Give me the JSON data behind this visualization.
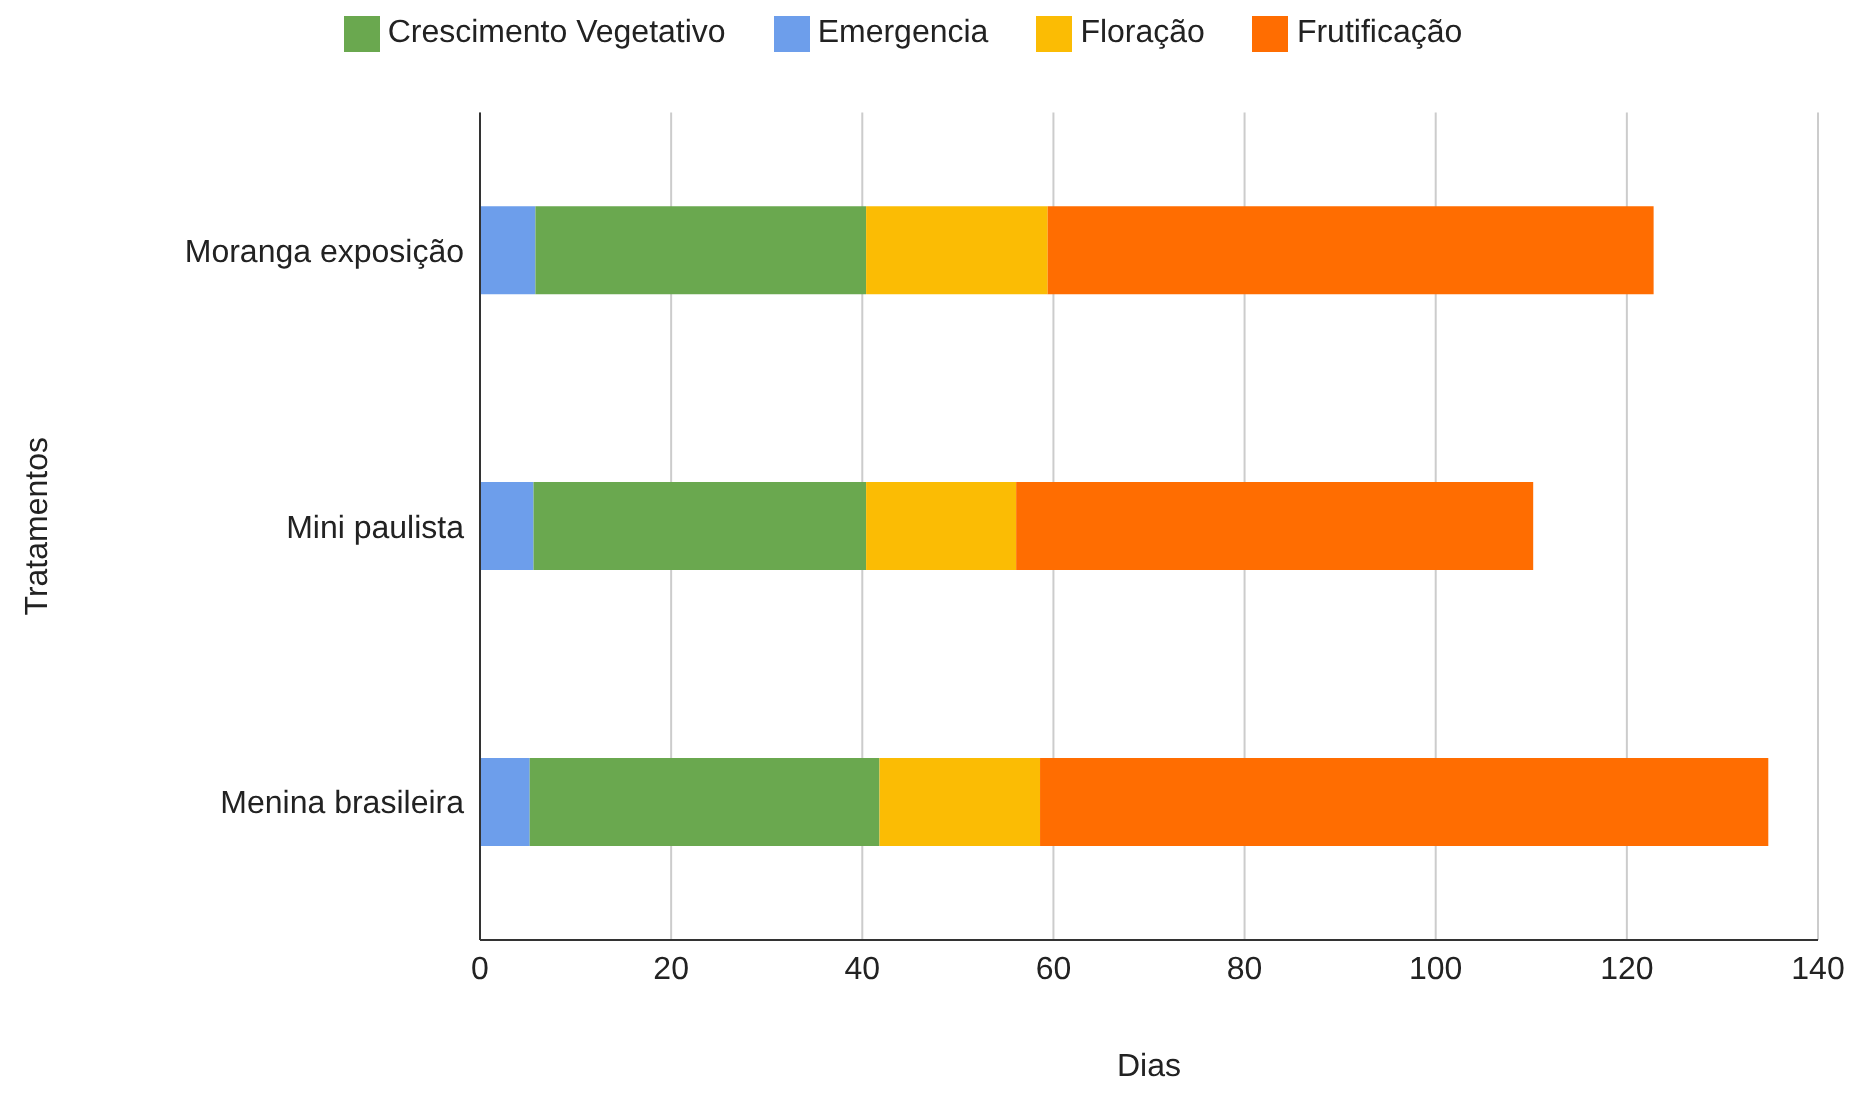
{
  "chart_data": {
    "type": "bar",
    "orientation": "horizontal",
    "stacked": true,
    "xlabel": "Dias",
    "ylabel": "Tratamentos",
    "categories": [
      "Moranga exposição",
      "Mini paulista",
      "Menina brasileira"
    ],
    "series": [
      {
        "name": "Emergencia",
        "color": "#6d9eeb",
        "values": [
          5.8,
          5.6,
          5.2
        ]
      },
      {
        "name": "Crescimento Vegetativo",
        "color": "#6aa84f",
        "values": [
          34.6,
          34.8,
          36.6
        ]
      },
      {
        "name": "Floração",
        "color": "#fbbc04",
        "values": [
          19,
          15.7,
          16.8
        ]
      },
      {
        "name": "Frutificação",
        "color": "#ff6d01",
        "values": [
          63.4,
          54.1,
          76.2
        ]
      }
    ],
    "xlim": [
      0,
      140
    ],
    "xticks": [
      0,
      20,
      40,
      60,
      80,
      100,
      120,
      140
    ],
    "grid": "x",
    "legend": "top"
  }
}
